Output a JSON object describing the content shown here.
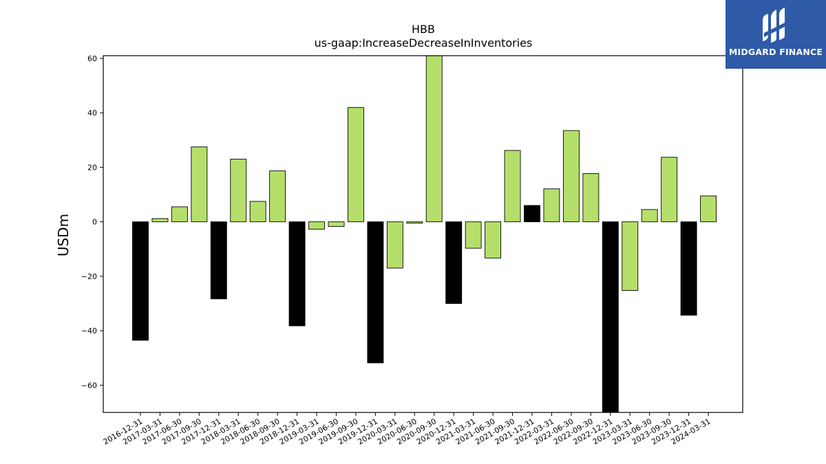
{
  "chart_data": {
    "type": "bar",
    "title": "HBB",
    "subtitle": "us-gaap:IncreaseDecreaseInInventories",
    "xlabel": "",
    "ylabel": "USDm",
    "ylim": [
      -70,
      61
    ],
    "yticks": [
      60,
      40,
      20,
      0,
      -20,
      -40,
      -60
    ],
    "ytick_labels": [
      "60",
      "40",
      "20",
      "0",
      "−20",
      "−40",
      "−60"
    ],
    "grid": false,
    "colors": {
      "quarter": "#b5df6a",
      "year_end": "#000000",
      "edge": "#000000"
    },
    "categories": [
      "2016-12-31",
      "2017-03-31",
      "2017-06-30",
      "2017-09-30",
      "2017-12-31",
      "2018-03-31",
      "2018-06-30",
      "2018-09-30",
      "2018-12-31",
      "2019-03-31",
      "2019-06-30",
      "2019-09-30",
      "2019-12-31",
      "2020-03-31",
      "2020-06-30",
      "2020-09-30",
      "2020-12-31",
      "2021-03-31",
      "2021-06-30",
      "2021-09-30",
      "2021-12-31",
      "2022-03-31",
      "2022-06-30",
      "2022-09-30",
      "2022-12-31",
      "2023-03-31",
      "2023-06-30",
      "2023-09-30",
      "2023-12-31",
      "2024-03-31"
    ],
    "values": [
      -43.5,
      1.2,
      5.5,
      27.5,
      -28.3,
      23.0,
      7.5,
      18.7,
      -38.2,
      -2.7,
      -1.7,
      42.0,
      -51.8,
      -17.0,
      -0.5,
      61.0,
      -30.0,
      -9.7,
      -13.3,
      26.2,
      6.0,
      12.1,
      33.5,
      17.7,
      -70.0,
      -25.2,
      4.5,
      23.7,
      -34.3,
      9.5
    ],
    "year_end": [
      true,
      false,
      false,
      false,
      true,
      false,
      false,
      false,
      true,
      false,
      false,
      false,
      true,
      false,
      false,
      false,
      true,
      false,
      false,
      false,
      true,
      false,
      false,
      false,
      true,
      false,
      false,
      false,
      true,
      false
    ]
  },
  "logo": {
    "text": "MIDGARD FINANCE",
    "icon": "midgard-logo-icon"
  }
}
